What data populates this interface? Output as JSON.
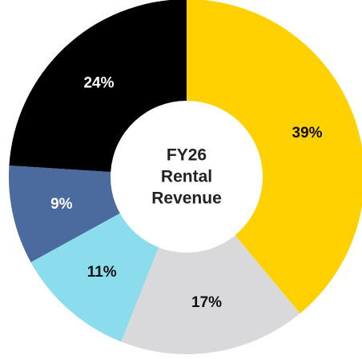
{
  "chart_data": {
    "type": "donut",
    "title": "FY26 Rental Revenue",
    "values": [
      39,
      17,
      11,
      9,
      24
    ],
    "value_labels": [
      "39%",
      "17%",
      "11%",
      "9%",
      "24%"
    ],
    "colors": [
      "#FFD100",
      "#D9D9DB",
      "#8BDCEC",
      "#4B6B9E",
      "#000000"
    ]
  }
}
